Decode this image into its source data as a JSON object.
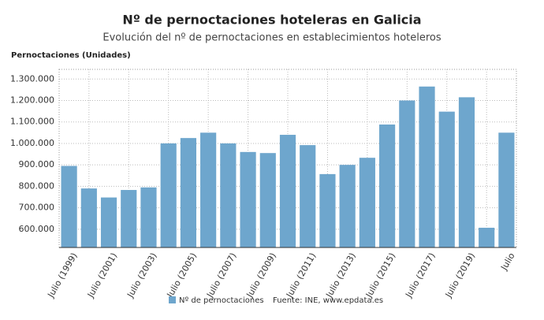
{
  "chart_data": {
    "type": "bar",
    "title": "Nº de pernoctaciones hoteleras en Galicia",
    "subtitle": "Evolución del nº de pernoctaciones en establecimientos hoteleros",
    "y_axis_label": "Pernoctaciones (Unidades)",
    "categories": [
      "Julio (1999)",
      null,
      "Julio (2001)",
      null,
      "Julio (2003)",
      null,
      "Julio (2005)",
      null,
      "Julio (2007)",
      null,
      "Julio (2009)",
      null,
      "Julio (2011)",
      null,
      "Julio (2013)",
      null,
      "Julio (2015)",
      null,
      "Julio (2017)",
      null,
      "Julio (2019)",
      null,
      "Julio"
    ],
    "series": [
      {
        "name": "Nº de pernoctaciones",
        "color": "#6ea6cd",
        "values": [
          895000,
          790000,
          748000,
          783000,
          795000,
          1000000,
          1025000,
          1050000,
          1000000,
          960000,
          955000,
          1040000,
          992000,
          857000,
          900000,
          933000,
          1088000,
          1200000,
          1265000,
          1148000,
          1215000,
          607000,
          1050000
        ]
      }
    ],
    "source": "Fuente: INE, www.epdata.es",
    "ylim": [
      515000,
      1345000
    ],
    "yticks": [
      {
        "value": 600000,
        "label": "600.000"
      },
      {
        "value": 700000,
        "label": "700.000"
      },
      {
        "value": 800000,
        "label": "800.000"
      },
      {
        "value": 900000,
        "label": "900.000"
      },
      {
        "value": 1000000,
        "label": "1.000.000"
      },
      {
        "value": 1100000,
        "label": "1.100.000"
      },
      {
        "value": 1200000,
        "label": "1.200.000"
      },
      {
        "value": 1300000,
        "label": "1.300.000"
      }
    ],
    "grid": true
  }
}
